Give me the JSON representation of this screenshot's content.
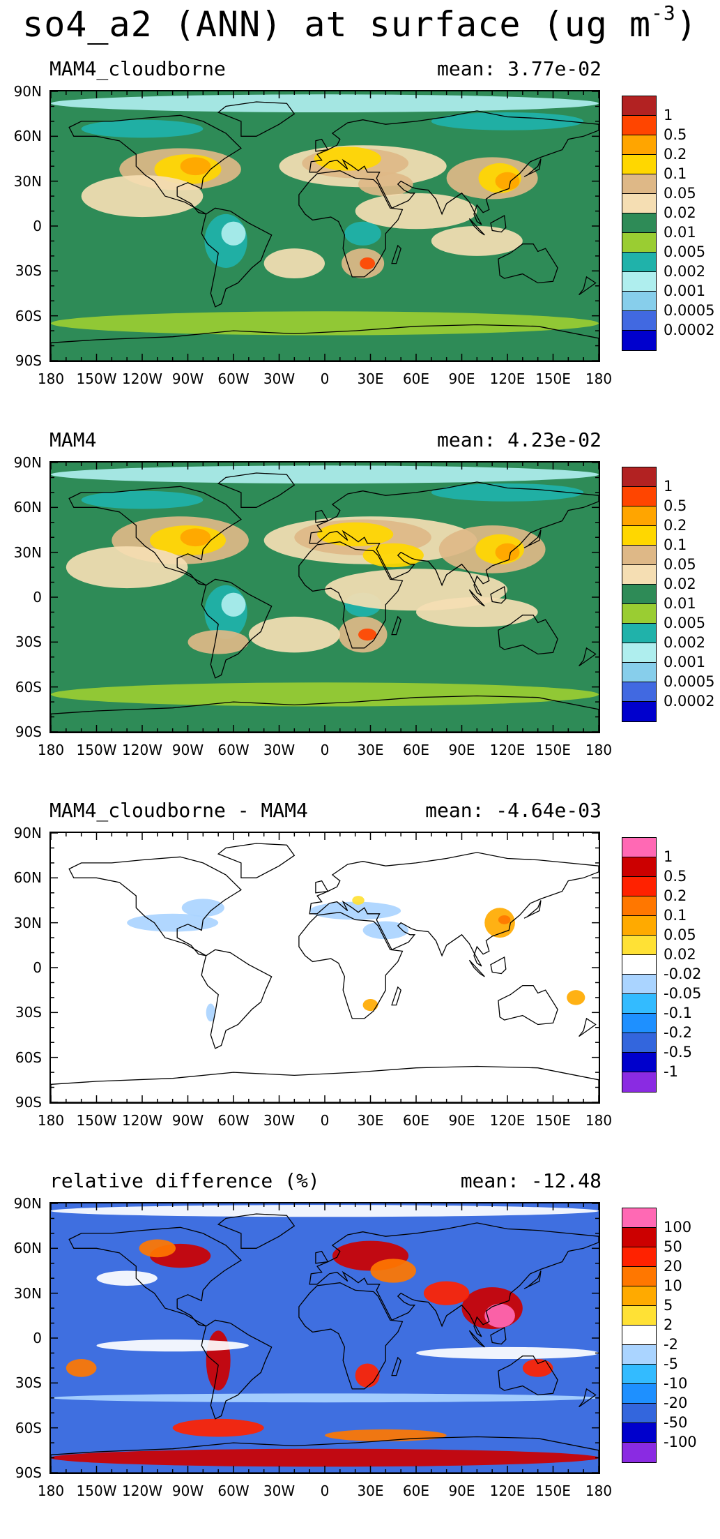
{
  "figure_title": "so4_a2 (ANN) at surface (ug m",
  "figure_title_exp": "-3",
  "figure_title_close": ")",
  "lat_labels": [
    "90N",
    "60N",
    "30N",
    "0",
    "30S",
    "60S",
    "90S"
  ],
  "lon_labels": [
    "180",
    "150W",
    "120W",
    "90W",
    "60W",
    "30W",
    "0",
    "30E",
    "60E",
    "90E",
    "120E",
    "150E",
    "180"
  ],
  "panels": [
    {
      "title": "MAM4_cloudborne",
      "mean": "mean: 3.77e-02",
      "ocean_color": "#2e8b57",
      "colorbar": {
        "colors": [
          "#b22222",
          "#ff4500",
          "#ffa500",
          "#ffd700",
          "#deb887",
          "#f5deb3",
          "#2e8b57",
          "#9acd32",
          "#20b2aa",
          "#afeeee",
          "#87ceeb",
          "#4169e1",
          "#0000cd"
        ],
        "labels": [
          "1",
          "0.5",
          "0.2",
          "0.1",
          "0.05",
          "0.02",
          "0.01",
          "0.005",
          "0.002",
          "0.001",
          "0.0005",
          "0.0002"
        ]
      }
    },
    {
      "title": "MAM4",
      "mean": "mean: 4.23e-02",
      "ocean_color": "#2e8b57",
      "colorbar": {
        "colors": [
          "#b22222",
          "#ff4500",
          "#ffa500",
          "#ffd700",
          "#deb887",
          "#f5deb3",
          "#2e8b57",
          "#9acd32",
          "#20b2aa",
          "#afeeee",
          "#87ceeb",
          "#4169e1",
          "#0000cd"
        ],
        "labels": [
          "1",
          "0.5",
          "0.2",
          "0.1",
          "0.05",
          "0.02",
          "0.01",
          "0.005",
          "0.002",
          "0.001",
          "0.0005",
          "0.0002"
        ]
      }
    },
    {
      "title": "MAM4_cloudborne - MAM4",
      "mean": "mean: -4.64e-03",
      "ocean_color": "#ffffff",
      "colorbar": {
        "colors": [
          "#ff69b4",
          "#cc0000",
          "#ff2200",
          "#ff7700",
          "#ffaa00",
          "#ffe135",
          "#ffffff",
          "#aad4ff",
          "#33bbff",
          "#1e90ff",
          "#3366dd",
          "#0000cc",
          "#8a2be2"
        ],
        "labels": [
          "1",
          "0.5",
          "0.2",
          "0.1",
          "0.05",
          "0.02",
          "-0.02",
          "-0.05",
          "-0.1",
          "-0.2",
          "-0.5",
          "-1"
        ]
      }
    },
    {
      "title": "relative difference (%)",
      "mean": "mean: -12.48",
      "ocean_color": "#3f6fe0",
      "colorbar": {
        "colors": [
          "#ff69b4",
          "#cc0000",
          "#ff2200",
          "#ff7700",
          "#ffaa00",
          "#ffe135",
          "#ffffff",
          "#aad4ff",
          "#33bbff",
          "#1e90ff",
          "#3366dd",
          "#0000cc",
          "#8a2be2"
        ],
        "labels": [
          "100",
          "50",
          "20",
          "10",
          "5",
          "2",
          "-2",
          "-5",
          "-10",
          "-20",
          "-50",
          "-100"
        ]
      }
    }
  ]
}
